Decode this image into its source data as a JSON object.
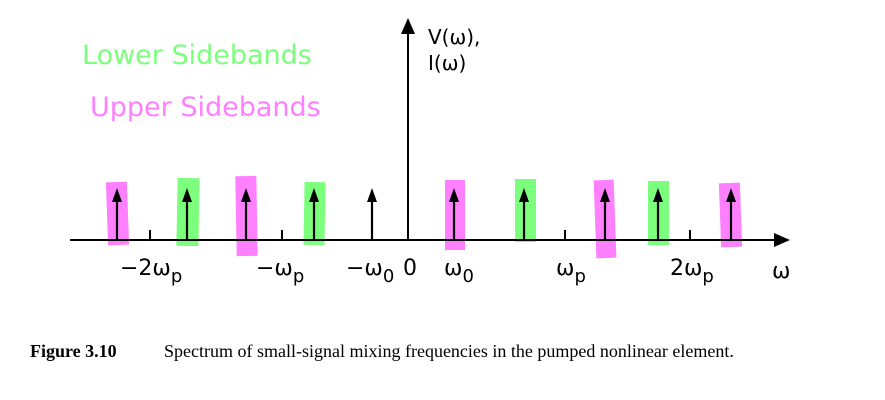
{
  "legend": {
    "lower_label": "Lower Sidebands",
    "upper_label": "Upper Sidebands",
    "lower_color": "#7cff7c",
    "upper_color": "#ff80ff"
  },
  "axes": {
    "y_label_line1": "V(ω),",
    "y_label_line2": "I(ω)",
    "x_label": "ω"
  },
  "ticks": [
    {
      "id": "-2wp",
      "label": "−2ωp"
    },
    {
      "id": "-wp",
      "label": "−ωp"
    },
    {
      "id": "-w0",
      "label": "−ω0"
    },
    {
      "id": "0",
      "label": "0"
    },
    {
      "id": "w0",
      "label": "ω0"
    },
    {
      "id": "wp",
      "label": "ωp"
    },
    {
      "id": "2wp",
      "label": "2ωp"
    }
  ],
  "lines": [
    {
      "id": "-2wp-w0",
      "band": "upper"
    },
    {
      "id": "-2wp+w0",
      "band": "lower"
    },
    {
      "id": "-wp-w0",
      "band": "upper"
    },
    {
      "id": "-wp+w0",
      "band": "lower"
    },
    {
      "id": "-w0",
      "band": "none"
    },
    {
      "id": "w0",
      "band": "upper"
    },
    {
      "id": "wp-w0",
      "band": "lower"
    },
    {
      "id": "wp+w0",
      "band": "upper"
    },
    {
      "id": "2wp-w0",
      "band": "lower"
    },
    {
      "id": "2wp+w0",
      "band": "upper"
    }
  ],
  "caption": {
    "label": "Figure 3.10",
    "text": "Spectrum of small-signal mixing frequencies in the pumped nonlinear element."
  }
}
